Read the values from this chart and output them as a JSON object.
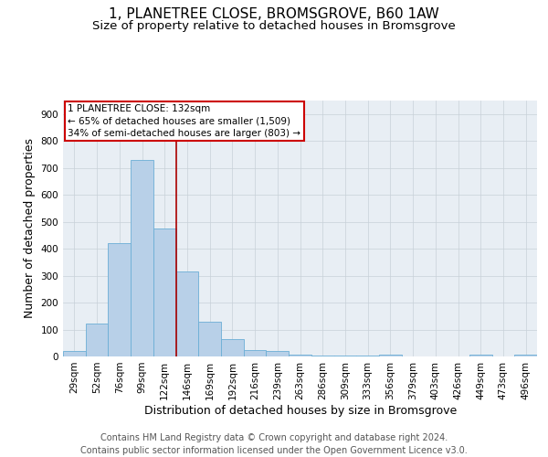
{
  "title": "1, PLANETREE CLOSE, BROMSGROVE, B60 1AW",
  "subtitle": "Size of property relative to detached houses in Bromsgrove",
  "xlabel": "Distribution of detached houses by size in Bromsgrove",
  "ylabel": "Number of detached properties",
  "categories": [
    "29sqm",
    "52sqm",
    "76sqm",
    "99sqm",
    "122sqm",
    "146sqm",
    "169sqm",
    "192sqm",
    "216sqm",
    "239sqm",
    "263sqm",
    "286sqm",
    "309sqm",
    "333sqm",
    "356sqm",
    "379sqm",
    "403sqm",
    "426sqm",
    "449sqm",
    "473sqm",
    "496sqm"
  ],
  "values": [
    20,
    122,
    420,
    730,
    475,
    315,
    130,
    65,
    23,
    20,
    8,
    5,
    2,
    2,
    7,
    0,
    0,
    0,
    8,
    0,
    8
  ],
  "bar_color": "#b8d0e8",
  "bar_edge_color": "#6baed6",
  "vline_x": 4.5,
  "vline_color": "#aa0000",
  "annotation_text": "1 PLANETREE CLOSE: 132sqm\n← 65% of detached houses are smaller (1,509)\n34% of semi-detached houses are larger (803) →",
  "annotation_box_color": "#ffffff",
  "annotation_box_edge_color": "#cc0000",
  "ylim": [
    0,
    950
  ],
  "yticks": [
    0,
    100,
    200,
    300,
    400,
    500,
    600,
    700,
    800,
    900
  ],
  "footer": "Contains HM Land Registry data © Crown copyright and database right 2024.\nContains public sector information licensed under the Open Government Licence v3.0.",
  "title_fontsize": 11,
  "subtitle_fontsize": 9.5,
  "axis_fontsize": 9,
  "tick_fontsize": 7.5,
  "footer_fontsize": 7,
  "bg_color": "#ffffff",
  "plot_bg_color": "#e8eef4",
  "grid_color": "#c8d0d8"
}
